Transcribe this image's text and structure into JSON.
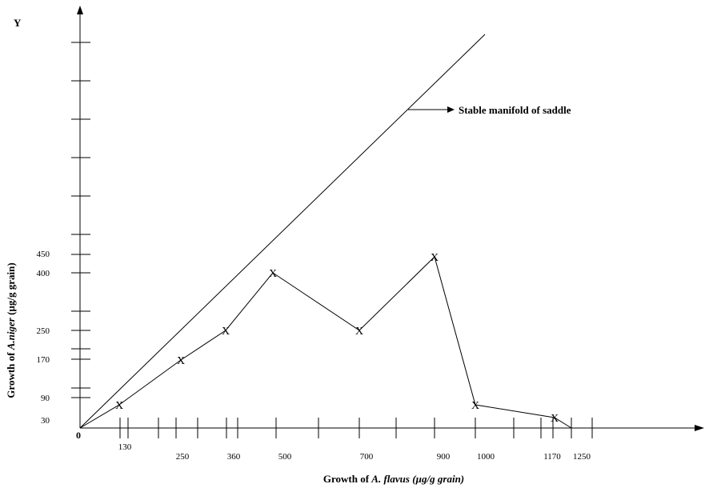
{
  "chart_data": {
    "type": "line",
    "axis_letter_y": "Y",
    "origin_label": "0",
    "xlabel_parts": [
      "Growth of ",
      "A. flavus",
      " (µg/g grain)"
    ],
    "ylabel_parts": [
      "Growth of ",
      "A.niger",
      " (µg/g grain)"
    ],
    "x_tick_labels": [
      "130",
      "250",
      "360",
      "500",
      "700",
      "900",
      "1000",
      "1170",
      "1250"
    ],
    "y_tick_labels": [
      "30",
      "90",
      "170",
      "250",
      "400",
      "450"
    ],
    "series": [
      {
        "marker": "X",
        "points": [
          {
            "x": 130,
            "y": 60
          },
          {
            "x": 250,
            "y": 170
          },
          {
            "x": 360,
            "y": 250
          },
          {
            "x": 500,
            "y": 400
          },
          {
            "x": 700,
            "y": 250
          },
          {
            "x": 900,
            "y": 450
          },
          {
            "x": 1000,
            "y": 60
          },
          {
            "x": 1170,
            "y": 30
          }
        ],
        "line_start": {
          "x": 0,
          "y": 0
        },
        "line_end": {
          "x": 1250,
          "y": 0
        }
      }
    ],
    "reference_line": {
      "label": "Stable manifold of saddle",
      "from": {
        "x": 0,
        "y": 0
      },
      "to": {
        "x": 1030,
        "y": 1040
      }
    },
    "grid": false,
    "legend": "none"
  }
}
